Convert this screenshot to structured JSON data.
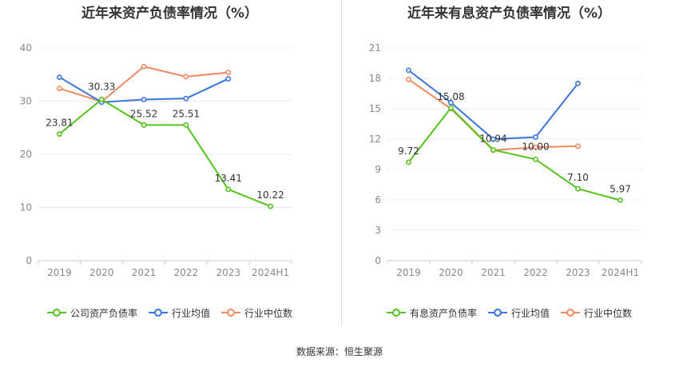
{
  "chart_data": [
    {
      "type": "line",
      "title": "近年来资产负债率情况（%）",
      "categories": [
        "2019",
        "2020",
        "2021",
        "2022",
        "2023",
        "2024H1"
      ],
      "ylim": [
        0,
        40
      ],
      "yticks": [
        0,
        10,
        20,
        30,
        40
      ],
      "grid": true,
      "legend_position": "bottom",
      "series": [
        {
          "name": "公司资产负债率",
          "color": "#52c41a",
          "values": [
            23.81,
            30.33,
            25.52,
            25.51,
            13.41,
            10.22
          ],
          "labels": [
            "23.81",
            "30.33",
            "25.52",
            "25.51",
            "13.41",
            "10.22"
          ]
        },
        {
          "name": "行业均值",
          "color": "#3a75dc",
          "values": [
            34.5,
            29.8,
            30.3,
            30.5,
            34.2,
            null
          ]
        },
        {
          "name": "行业中位数",
          "color": "#f08a5d",
          "values": [
            32.4,
            29.9,
            36.5,
            34.6,
            35.4,
            null
          ]
        }
      ]
    },
    {
      "type": "line",
      "title": "近年来有息资产负债率情况（%）",
      "categories": [
        "2019",
        "2020",
        "2021",
        "2022",
        "2023",
        "2024H1"
      ],
      "ylim": [
        0,
        21
      ],
      "yticks": [
        0,
        3,
        6,
        9,
        12,
        15,
        18,
        21
      ],
      "grid": true,
      "legend_position": "bottom",
      "series": [
        {
          "name": "有息资产负债率",
          "color": "#52c41a",
          "values": [
            9.72,
            15.08,
            10.94,
            10.0,
            7.1,
            5.97
          ],
          "labels": [
            "9.72",
            "15.08",
            "10.94",
            "10.00",
            "7.10",
            "5.97"
          ]
        },
        {
          "name": "行业均值",
          "color": "#3a75dc",
          "values": [
            18.8,
            15.6,
            12.0,
            12.2,
            17.5,
            null
          ]
        },
        {
          "name": "行业中位数",
          "color": "#f08a5d",
          "values": [
            17.9,
            15.0,
            10.9,
            11.2,
            11.3,
            null
          ]
        }
      ]
    }
  ],
  "footer": {
    "source": "数据来源：恒生聚源"
  }
}
